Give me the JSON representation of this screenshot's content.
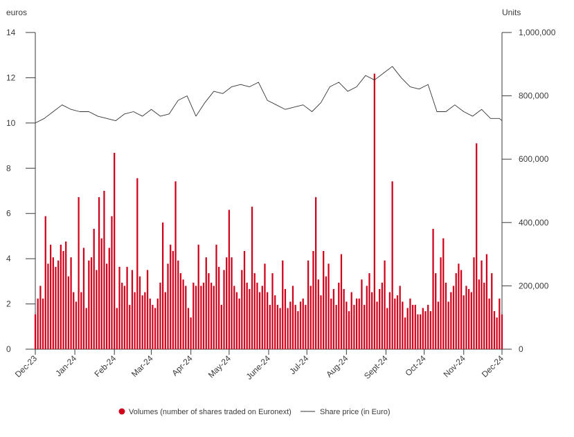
{
  "chart_data": {
    "type": "bar",
    "title": "",
    "left_axis": {
      "unit_label": "euros",
      "ylim": [
        0,
        14
      ],
      "ticks": [
        0,
        2,
        4,
        6,
        8,
        10,
        12,
        14
      ],
      "tick_labels": [
        "0",
        "2",
        "4",
        "6",
        "8",
        "10",
        "12",
        "14"
      ]
    },
    "right_axis": {
      "unit_label": "Units",
      "ylim": [
        0,
        1000000
      ],
      "ticks": [
        0,
        200000,
        400000,
        600000,
        800000,
        1000000
      ],
      "tick_labels": [
        "0",
        "200,000",
        "400,000",
        "600,000",
        "800,000",
        "1,000,000"
      ]
    },
    "x_axis": {
      "range": [
        "2023-12-01",
        "2024-12-01"
      ],
      "months": [
        "2023-12-01",
        "2024-01-01",
        "2024-02-01",
        "2024-03-01",
        "2024-04-01",
        "2024-05-01",
        "2024-06-01",
        "2024-07-01",
        "2024-08-01",
        "2024-09-01",
        "2024-10-01",
        "2024-11-01",
        "2024-12-01"
      ],
      "month_labels": [
        "Dec-23",
        "Jan-24",
        "Feb-24",
        "Mar-24",
        "Apr-24",
        "May-24",
        "June-24",
        "Jul-24",
        "Aug-24",
        "Sept-24",
        "Oct-24",
        "Nov-24",
        "Dec-24"
      ]
    },
    "legend": {
      "placement": "bottom",
      "volumes_label": "Volumes (number of shares traded on Euronext)",
      "price_label": "Share price (in Euro)"
    },
    "colors": {
      "volumes": "#d0021b",
      "price": "#333333",
      "axis": "#3a3a3a"
    },
    "series": [
      {
        "name": "Volumes (number of shares traded on Euronext)",
        "type": "bar",
        "axis": "right",
        "x": [
          "2023-12-01",
          "2023-12-03",
          "2023-12-05",
          "2023-12-07",
          "2023-12-09",
          "2023-12-11",
          "2023-12-13",
          "2023-12-15",
          "2023-12-17",
          "2023-12-19",
          "2023-12-21",
          "2023-12-23",
          "2023-12-25",
          "2023-12-27",
          "2023-12-29",
          "2023-12-31",
          "2024-01-02",
          "2024-01-04",
          "2024-01-06",
          "2024-01-08",
          "2024-01-10",
          "2024-01-12",
          "2024-01-14",
          "2024-01-16",
          "2024-01-18",
          "2024-01-20",
          "2024-01-22",
          "2024-01-24",
          "2024-01-26",
          "2024-01-28",
          "2024-01-30",
          "2024-02-01",
          "2024-02-03",
          "2024-02-05",
          "2024-02-07",
          "2024-02-09",
          "2024-02-11",
          "2024-02-13",
          "2024-02-15",
          "2024-02-17",
          "2024-02-19",
          "2024-02-21",
          "2024-02-23",
          "2024-02-25",
          "2024-02-27",
          "2024-02-29",
          "2024-03-02",
          "2024-03-04",
          "2024-03-06",
          "2024-03-08",
          "2024-03-10",
          "2024-03-12",
          "2024-03-14",
          "2024-03-16",
          "2024-03-18",
          "2024-03-20",
          "2024-03-22",
          "2024-03-24",
          "2024-03-26",
          "2024-03-28",
          "2024-03-30",
          "2024-04-01",
          "2024-04-03",
          "2024-04-05",
          "2024-04-07",
          "2024-04-09",
          "2024-04-11",
          "2024-04-13",
          "2024-04-15",
          "2024-04-17",
          "2024-04-19",
          "2024-04-21",
          "2024-04-23",
          "2024-04-25",
          "2024-04-27",
          "2024-04-29",
          "2024-05-01",
          "2024-05-03",
          "2024-05-05",
          "2024-05-07",
          "2024-05-09",
          "2024-05-11",
          "2024-05-13",
          "2024-05-15",
          "2024-05-17",
          "2024-05-19",
          "2024-05-21",
          "2024-05-23",
          "2024-05-25",
          "2024-05-27",
          "2024-05-29",
          "2024-05-31",
          "2024-06-02",
          "2024-06-04",
          "2024-06-06",
          "2024-06-08",
          "2024-06-10",
          "2024-06-12",
          "2024-06-14",
          "2024-06-16",
          "2024-06-18",
          "2024-06-20",
          "2024-06-22",
          "2024-06-24",
          "2024-06-26",
          "2024-06-28",
          "2024-06-30",
          "2024-07-02",
          "2024-07-04",
          "2024-07-06",
          "2024-07-08",
          "2024-07-10",
          "2024-07-12",
          "2024-07-14",
          "2024-07-16",
          "2024-07-18",
          "2024-07-20",
          "2024-07-22",
          "2024-07-24",
          "2024-07-26",
          "2024-07-28",
          "2024-07-30",
          "2024-08-01",
          "2024-08-03",
          "2024-08-05",
          "2024-08-07",
          "2024-08-09",
          "2024-08-11",
          "2024-08-13",
          "2024-08-15",
          "2024-08-17",
          "2024-08-19",
          "2024-08-21",
          "2024-08-23",
          "2024-08-25",
          "2024-08-27",
          "2024-08-29",
          "2024-08-31",
          "2024-09-02",
          "2024-09-04",
          "2024-09-06",
          "2024-09-08",
          "2024-09-10",
          "2024-09-12",
          "2024-09-14",
          "2024-09-16",
          "2024-09-18",
          "2024-09-20",
          "2024-09-22",
          "2024-09-24",
          "2024-09-26",
          "2024-09-28",
          "2024-09-30",
          "2024-10-02",
          "2024-10-04",
          "2024-10-06",
          "2024-10-08",
          "2024-10-10",
          "2024-10-12",
          "2024-10-14",
          "2024-10-16",
          "2024-10-18",
          "2024-10-20",
          "2024-10-22",
          "2024-10-24",
          "2024-10-26",
          "2024-10-28",
          "2024-10-30",
          "2024-11-01",
          "2024-11-03",
          "2024-11-05",
          "2024-11-07",
          "2024-11-09",
          "2024-11-11",
          "2024-11-13",
          "2024-11-15",
          "2024-11-17",
          "2024-11-19",
          "2024-11-21",
          "2024-11-23",
          "2024-11-25",
          "2024-11-27",
          "2024-11-29",
          "2024-12-01"
        ],
        "values": [
          110000,
          160000,
          200000,
          160000,
          420000,
          270000,
          330000,
          290000,
          260000,
          280000,
          330000,
          310000,
          340000,
          230000,
          290000,
          180000,
          150000,
          480000,
          180000,
          320000,
          130000,
          280000,
          290000,
          380000,
          250000,
          480000,
          350000,
          500000,
          270000,
          320000,
          420000,
          620000,
          130000,
          260000,
          210000,
          200000,
          260000,
          140000,
          250000,
          180000,
          540000,
          230000,
          170000,
          180000,
          250000,
          160000,
          140000,
          130000,
          160000,
          210000,
          400000,
          180000,
          270000,
          330000,
          310000,
          530000,
          280000,
          240000,
          220000,
          200000,
          130000,
          100000,
          210000,
          200000,
          330000,
          200000,
          210000,
          290000,
          240000,
          210000,
          200000,
          330000,
          260000,
          140000,
          250000,
          290000,
          440000,
          290000,
          200000,
          180000,
          160000,
          250000,
          310000,
          210000,
          190000,
          450000,
          240000,
          210000,
          180000,
          200000,
          270000,
          180000,
          140000,
          240000,
          170000,
          140000,
          130000,
          280000,
          190000,
          130000,
          150000,
          200000,
          140000,
          120000,
          150000,
          160000,
          140000,
          280000,
          200000,
          310000,
          480000,
          220000,
          170000,
          310000,
          230000,
          270000,
          160000,
          190000,
          140000,
          210000,
          300000,
          190000,
          150000,
          120000,
          180000,
          140000,
          160000,
          160000,
          220000,
          140000,
          200000,
          240000,
          180000,
          870000,
          150000,
          190000,
          210000,
          280000,
          130000,
          180000,
          530000,
          160000,
          170000,
          200000,
          150000,
          100000,
          130000,
          160000,
          140000,
          140000,
          110000,
          110000,
          130000,
          120000,
          140000,
          120000,
          380000,
          240000,
          150000,
          290000,
          350000,
          210000,
          150000,
          180000,
          200000,
          240000,
          270000,
          250000,
          170000,
          200000,
          190000,
          180000,
          290000,
          650000,
          220000,
          280000,
          210000,
          300000,
          160000,
          240000,
          120000,
          100000,
          160000,
          110000
        ]
      },
      {
        "name": "Share price (in Euro)",
        "type": "line",
        "axis": "left",
        "x": [
          "2023-12-01",
          "2023-12-08",
          "2023-12-15",
          "2023-12-22",
          "2023-12-29",
          "2024-01-05",
          "2024-01-12",
          "2024-01-19",
          "2024-01-26",
          "2024-02-02",
          "2024-02-09",
          "2024-02-16",
          "2024-02-23",
          "2024-03-01",
          "2024-03-08",
          "2024-03-15",
          "2024-03-22",
          "2024-03-29",
          "2024-04-05",
          "2024-04-12",
          "2024-04-19",
          "2024-04-26",
          "2024-05-03",
          "2024-05-10",
          "2024-05-17",
          "2024-05-24",
          "2024-05-31",
          "2024-06-07",
          "2024-06-14",
          "2024-06-21",
          "2024-06-28",
          "2024-07-05",
          "2024-07-12",
          "2024-07-19",
          "2024-07-26",
          "2024-08-02",
          "2024-08-09",
          "2024-08-16",
          "2024-08-23",
          "2024-08-30",
          "2024-09-06",
          "2024-09-13",
          "2024-09-20",
          "2024-09-27",
          "2024-10-04",
          "2024-10-11",
          "2024-10-18",
          "2024-10-25",
          "2024-11-01",
          "2024-11-08",
          "2024-11-15",
          "2024-11-22",
          "2024-11-29",
          "2024-12-01"
        ],
        "values": [
          10.0,
          10.2,
          10.5,
          10.8,
          10.6,
          10.5,
          10.5,
          10.3,
          10.2,
          10.1,
          10.4,
          10.5,
          10.3,
          10.6,
          10.3,
          10.4,
          11.0,
          11.2,
          10.3,
          10.9,
          11.4,
          11.3,
          11.6,
          11.7,
          11.6,
          11.8,
          11.0,
          10.8,
          10.6,
          10.7,
          10.8,
          10.5,
          10.9,
          11.6,
          11.8,
          11.4,
          11.6,
          12.1,
          11.9,
          12.2,
          12.5,
          12.0,
          11.6,
          11.5,
          11.7,
          10.5,
          10.5,
          10.8,
          10.5,
          10.3,
          10.6,
          10.2,
          10.2,
          10.1
        ]
      }
    ]
  }
}
